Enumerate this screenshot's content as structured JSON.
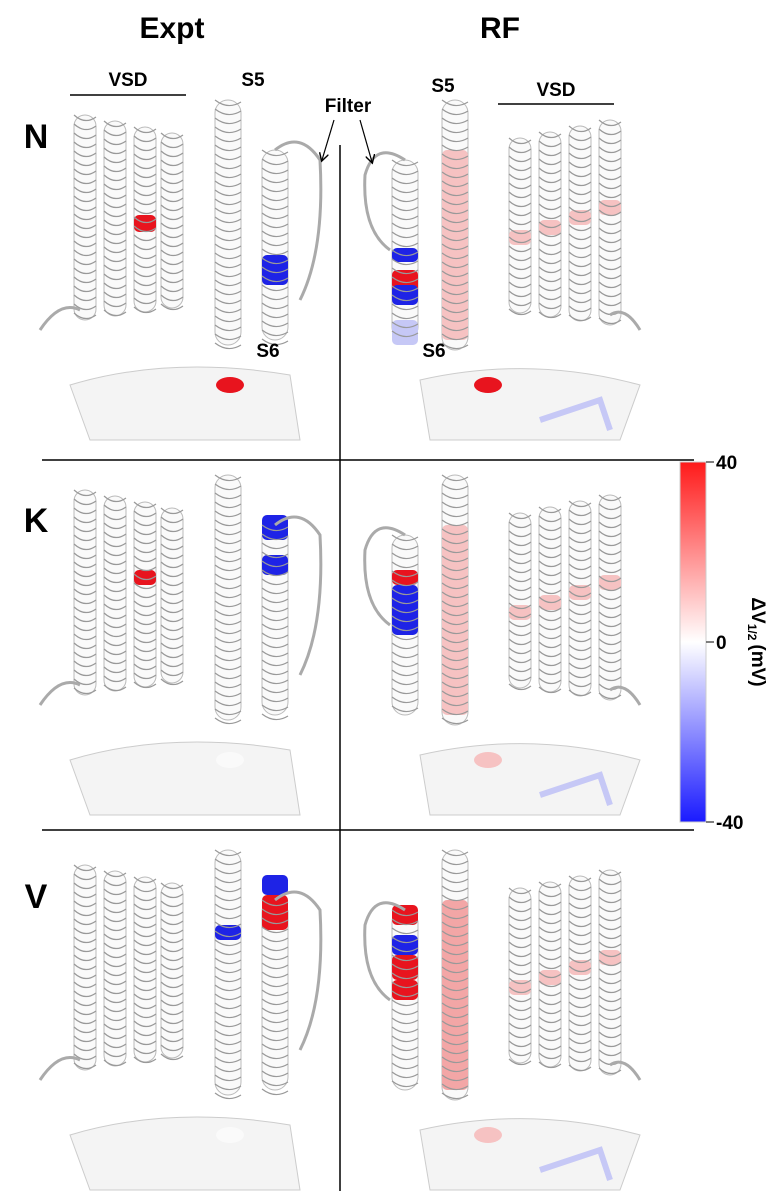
{
  "columns": {
    "expt": "Expt",
    "rf": "RF"
  },
  "rows": [
    "N",
    "K",
    "V"
  ],
  "annotations": {
    "vsd_left": "VSD",
    "vsd_right": "VSD",
    "s5_left": "S5",
    "s5_right": "S5",
    "s6_left": "S6",
    "s6_right": "S6",
    "filter": "Filter"
  },
  "colorbar": {
    "label": {
      "main": "ΔV",
      "sub": "1/2",
      "unit": "(mV)"
    },
    "lim": [
      -40,
      40
    ],
    "ticks": [
      40,
      0,
      -40
    ]
  }
}
